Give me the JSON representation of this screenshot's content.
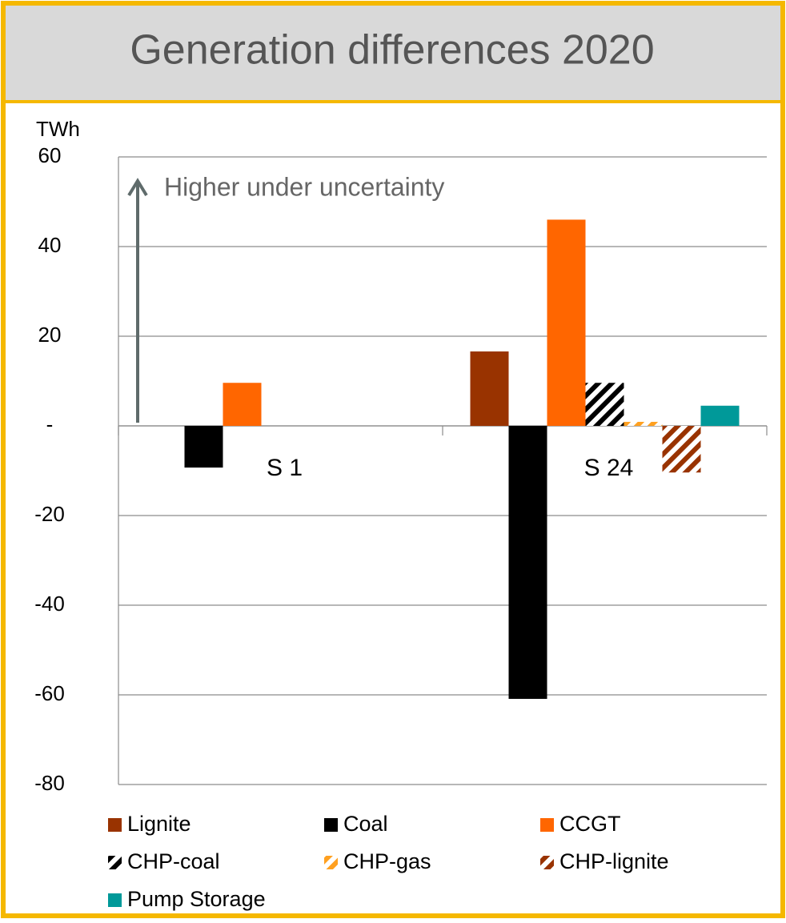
{
  "chart_data": {
    "type": "bar",
    "title": "Generation differences 2020",
    "y_label": "TWh",
    "annotation": "Higher under uncertainty",
    "categories": [
      "S 1",
      "S 24"
    ],
    "series": [
      {
        "name": "Lignite",
        "color": "#993300",
        "values": [
          0,
          16.6
        ]
      },
      {
        "name": "Coal",
        "color": "#000000",
        "values": [
          -9.3,
          -60.9
        ]
      },
      {
        "name": "CCGT",
        "color": "#ff6600",
        "values": [
          9.6,
          46
        ]
      },
      {
        "name": "CHP-coal",
        "color": "#000000",
        "hatch": true,
        "values": [
          0,
          9.6
        ]
      },
      {
        "name": "CHP-gas",
        "color": "#ffa020",
        "hatch": true,
        "values": [
          0,
          0.9
        ]
      },
      {
        "name": "CHP-lignite",
        "color": "#993300",
        "hatch": true,
        "values": [
          0,
          -10.4
        ]
      },
      {
        "name": "Pump Storage",
        "color": "#009999",
        "values": [
          0,
          4.5
        ]
      }
    ],
    "ylim": [
      -80,
      60
    ],
    "yticks": [
      -80,
      -60,
      -40,
      -20,
      {
        "value": 0,
        "label": "-"
      },
      20,
      40,
      60
    ],
    "grid": true
  }
}
